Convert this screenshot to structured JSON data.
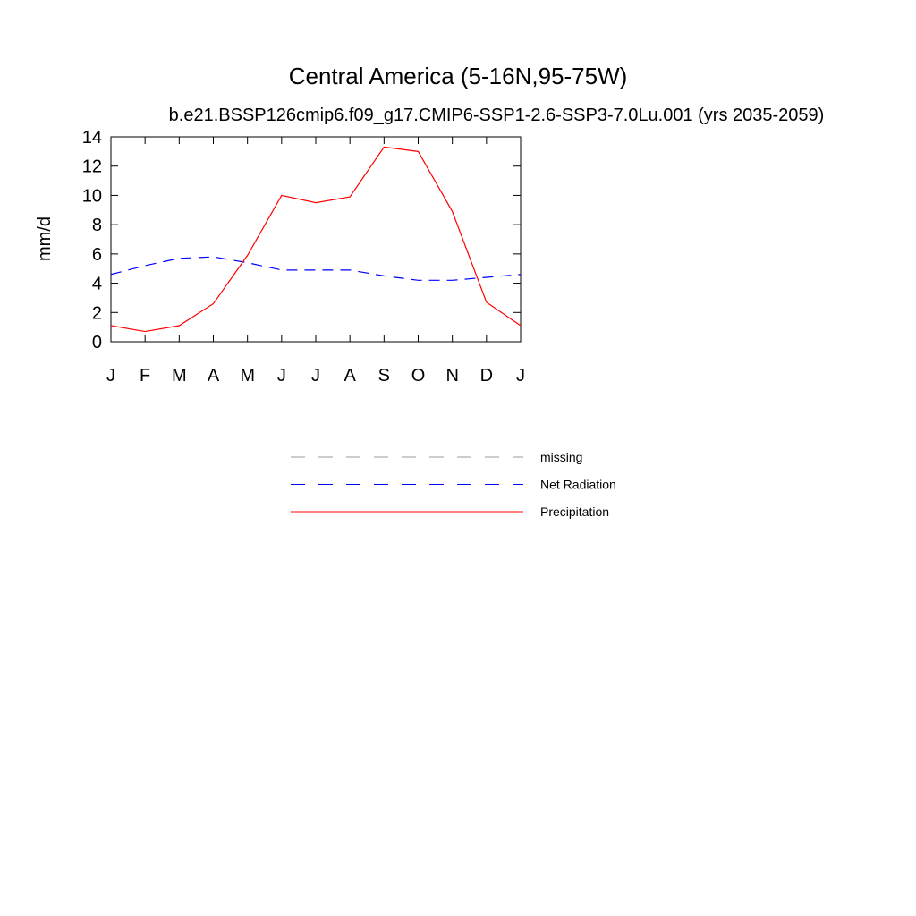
{
  "chart_data": {
    "type": "line",
    "title": "Central America (5-16N,95-75W)",
    "subtitle": "b.e21.BSSP126cmip6.f09_g17.CMIP6-SSP1-2.6-SSP3-7.0Lu.001 (yrs 2035-2059)",
    "y_label": "mm/d",
    "categories": [
      "J",
      "F",
      "M",
      "A",
      "M",
      "J",
      "J",
      "A",
      "S",
      "O",
      "N",
      "D",
      "J"
    ],
    "series": [
      {
        "name": "missing",
        "color": "#999999",
        "dashed": true,
        "values": [
          null,
          null,
          null,
          null,
          null,
          null,
          null,
          null,
          null,
          null,
          null,
          null,
          null
        ]
      },
      {
        "name": "Net Radiation",
        "color": "#0000ff",
        "dashed": true,
        "values": [
          4.6,
          5.2,
          5.7,
          5.8,
          5.4,
          4.9,
          4.9,
          4.9,
          4.5,
          4.2,
          4.2,
          4.4,
          4.6
        ]
      },
      {
        "name": "Precipitation",
        "color": "#ff0000",
        "dashed": false,
        "values": [
          1.1,
          0.7,
          1.1,
          2.6,
          5.9,
          10.0,
          9.5,
          9.9,
          13.3,
          13.0,
          8.9,
          2.7,
          1.1
        ]
      }
    ],
    "ylim": [
      0,
      14
    ],
    "yticks": [
      0,
      2,
      4,
      6,
      8,
      10,
      12,
      14
    ]
  }
}
